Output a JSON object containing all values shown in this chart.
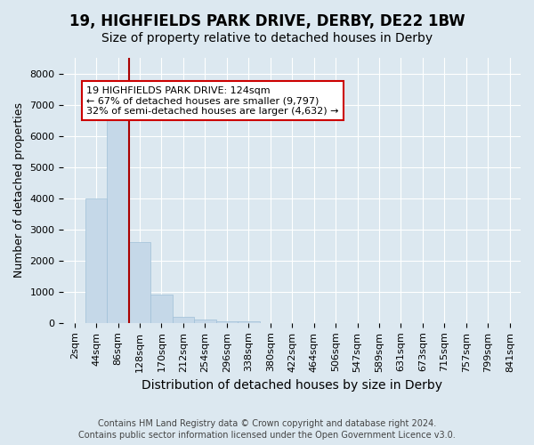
{
  "title_line1": "19, HIGHFIELDS PARK DRIVE, DERBY, DE22 1BW",
  "title_line2": "Size of property relative to detached houses in Derby",
  "xlabel": "Distribution of detached houses by size in Derby",
  "ylabel": "Number of detached properties",
  "footnote1": "Contains HM Land Registry data © Crown copyright and database right 2024.",
  "footnote2": "Contains public sector information licensed under the Open Government Licence v3.0.",
  "bar_labels": [
    "2sqm",
    "44sqm",
    "86sqm",
    "128sqm",
    "170sqm",
    "212sqm",
    "254sqm",
    "296sqm",
    "338sqm",
    "380sqm",
    "422sqm",
    "464sqm",
    "506sqm",
    "547sqm",
    "589sqm",
    "631sqm",
    "673sqm",
    "715sqm",
    "757sqm",
    "799sqm",
    "841sqm"
  ],
  "bar_values": [
    0,
    4000,
    6500,
    2600,
    900,
    200,
    100,
    50,
    50,
    0,
    0,
    0,
    0,
    0,
    0,
    0,
    0,
    0,
    0,
    0,
    0
  ],
  "bar_color": "#c5d8e8",
  "bar_edge_color": "#a0c0d8",
  "bar_width": 1.0,
  "vline_x_index": 2.5,
  "vline_color": "#aa0000",
  "annotation_text": "19 HIGHFIELDS PARK DRIVE: 124sqm\n← 67% of detached houses are smaller (9,797)\n32% of semi-detached houses are larger (4,632) →",
  "annotation_box_color": "#ffffff",
  "annotation_box_edgecolor": "#cc0000",
  "ylim": [
    0,
    8500
  ],
  "yticks": [
    0,
    1000,
    2000,
    3000,
    4000,
    5000,
    6000,
    7000,
    8000
  ],
  "bg_color": "#dce8f0",
  "grid_color": "#ffffff",
  "title1_fontsize": 12,
  "title2_fontsize": 10,
  "xlabel_fontsize": 10,
  "ylabel_fontsize": 9,
  "tick_fontsize": 8,
  "footnote_fontsize": 7
}
